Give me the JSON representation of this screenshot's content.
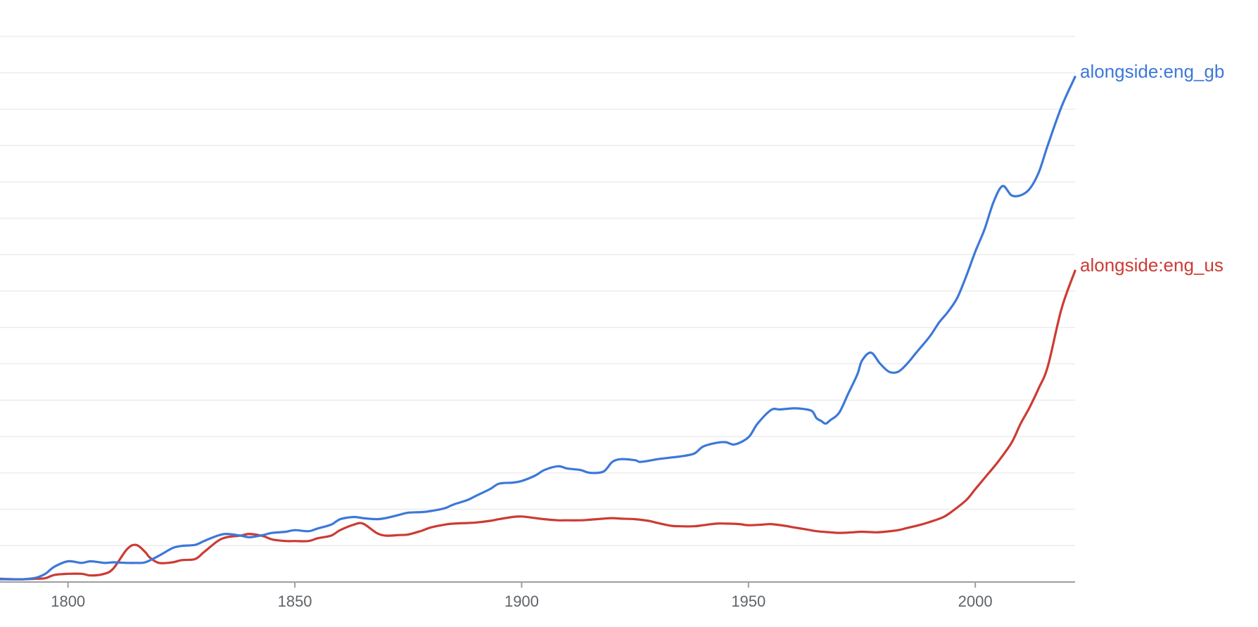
{
  "chart_data": {
    "type": "line",
    "grid": true,
    "x_range": [
      1785,
      2022
    ],
    "y_range": [
      0,
      100
    ],
    "x_ticks": [
      1800,
      1850,
      1900,
      1950,
      2000
    ],
    "x_tick_labels": [
      "1800",
      "1850",
      "1900",
      "1950",
      "2000"
    ],
    "legend_placement": "line-end-labels",
    "series": [
      {
        "name": "alongside:eng_gb",
        "color": "#3c78d8",
        "x": [
          1785,
          1790,
          1793,
          1795,
          1797,
          1800,
          1803,
          1805,
          1808,
          1810,
          1813,
          1815,
          1817,
          1820,
          1823,
          1825,
          1828,
          1830,
          1833,
          1835,
          1838,
          1840,
          1843,
          1845,
          1848,
          1850,
          1853,
          1855,
          1858,
          1860,
          1863,
          1865,
          1868,
          1870,
          1873,
          1875,
          1878,
          1880,
          1883,
          1885,
          1888,
          1890,
          1893,
          1895,
          1898,
          1900,
          1903,
          1905,
          1908,
          1910,
          1913,
          1915,
          1918,
          1920,
          1922,
          1925,
          1926,
          1928,
          1930,
          1933,
          1935,
          1938,
          1940,
          1943,
          1945,
          1947,
          1950,
          1952,
          1955,
          1957,
          1960,
          1962,
          1964,
          1965,
          1966,
          1967,
          1968,
          1970,
          1972,
          1974,
          1975,
          1977,
          1979,
          1981,
          1983,
          1985,
          1987,
          1990,
          1992,
          1994,
          1996,
          1998,
          2000,
          2002,
          2004,
          2006,
          2008,
          2010,
          2012,
          2014,
          2016,
          2019,
          2022
        ],
        "values": [
          0.5,
          0.5,
          0.8,
          1.5,
          2.8,
          3.8,
          3.5,
          3.8,
          3.5,
          3.6,
          3.5,
          3.5,
          3.6,
          4.8,
          6.2,
          6.6,
          6.8,
          7.5,
          8.5,
          8.8,
          8.5,
          8.2,
          8.6,
          9.0,
          9.2,
          9.5,
          9.3,
          9.8,
          10.5,
          11.5,
          11.9,
          11.7,
          11.5,
          11.7,
          12.3,
          12.7,
          12.8,
          13.0,
          13.5,
          14.2,
          15.0,
          15.8,
          17.0,
          18.0,
          18.2,
          18.5,
          19.5,
          20.5,
          21.2,
          20.8,
          20.5,
          20.0,
          20.2,
          22.0,
          22.5,
          22.3,
          22.0,
          22.2,
          22.5,
          22.8,
          23.0,
          23.5,
          24.8,
          25.5,
          25.6,
          25.2,
          26.5,
          29.0,
          31.5,
          31.6,
          31.8,
          31.7,
          31.3,
          30.0,
          29.5,
          29.0,
          29.6,
          31.0,
          34.5,
          38.0,
          40.5,
          42.0,
          40.0,
          38.5,
          38.5,
          40.0,
          42.0,
          45.0,
          47.5,
          49.5,
          52.0,
          56.0,
          60.5,
          64.5,
          69.5,
          72.5,
          70.8,
          70.8,
          72.0,
          75.0,
          80.0,
          87.0,
          92.5
        ]
      },
      {
        "name": "alongside:eng_us",
        "color": "#cc3b33",
        "x": [
          1785,
          1790,
          1793,
          1795,
          1797,
          1800,
          1803,
          1805,
          1808,
          1810,
          1813,
          1815,
          1817,
          1818,
          1820,
          1823,
          1825,
          1828,
          1830,
          1833,
          1835,
          1838,
          1840,
          1843,
          1845,
          1848,
          1850,
          1853,
          1855,
          1858,
          1860,
          1863,
          1865,
          1868,
          1870,
          1873,
          1875,
          1878,
          1880,
          1883,
          1885,
          1888,
          1890,
          1893,
          1895,
          1898,
          1900,
          1903,
          1905,
          1908,
          1910,
          1913,
          1915,
          1918,
          1920,
          1922,
          1925,
          1928,
          1930,
          1933,
          1935,
          1938,
          1940,
          1943,
          1945,
          1948,
          1950,
          1953,
          1955,
          1958,
          1960,
          1963,
          1965,
          1968,
          1970,
          1973,
          1975,
          1978,
          1980,
          1983,
          1985,
          1988,
          1990,
          1993,
          1995,
          1998,
          2000,
          2002,
          2005,
          2008,
          2010,
          2012,
          2014,
          2016,
          2019,
          2022
        ],
        "values": [
          0.6,
          0.5,
          0.6,
          0.7,
          1.3,
          1.5,
          1.5,
          1.2,
          1.5,
          2.5,
          6.0,
          6.8,
          5.5,
          4.5,
          3.5,
          3.6,
          4.0,
          4.2,
          5.5,
          7.5,
          8.2,
          8.5,
          8.8,
          8.4,
          7.8,
          7.5,
          7.5,
          7.5,
          8.0,
          8.5,
          9.5,
          10.5,
          10.7,
          9.0,
          8.5,
          8.6,
          8.7,
          9.4,
          10.0,
          10.5,
          10.7,
          10.8,
          10.9,
          11.2,
          11.5,
          11.9,
          12.0,
          11.7,
          11.5,
          11.3,
          11.3,
          11.3,
          11.4,
          11.6,
          11.7,
          11.6,
          11.5,
          11.2,
          10.8,
          10.3,
          10.2,
          10.2,
          10.4,
          10.7,
          10.7,
          10.6,
          10.4,
          10.5,
          10.6,
          10.3,
          10.0,
          9.6,
          9.3,
          9.1,
          9.0,
          9.1,
          9.2,
          9.1,
          9.2,
          9.5,
          9.9,
          10.5,
          11.0,
          11.9,
          13.0,
          15.0,
          17.0,
          19.0,
          22.0,
          25.5,
          29.0,
          32.0,
          35.5,
          39.5,
          50.0,
          57.0
        ]
      }
    ]
  }
}
